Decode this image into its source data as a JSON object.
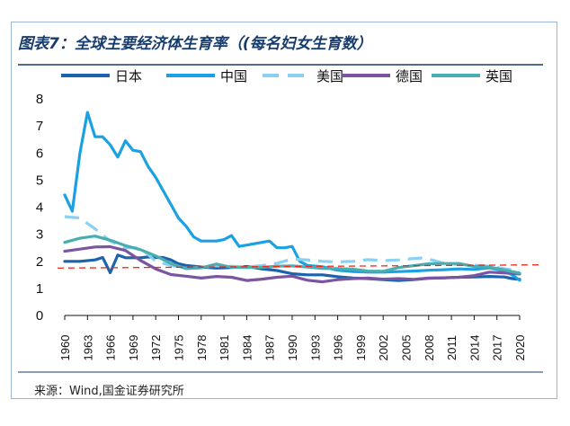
{
  "header": {
    "title": "图表7：全球主要经济体生育率（(每名妇女生育数）"
  },
  "footer": {
    "source": "来源：Wind,国金证券研究所"
  },
  "chart_data": {
    "type": "line",
    "title": "图表7：全球主要经济体生育率（(每名妇女生育数）",
    "xlabel": "",
    "ylabel": "",
    "ylim": [
      0,
      8
    ],
    "xlim": [
      1960,
      2020
    ],
    "yticks": [
      0,
      1,
      2,
      3,
      4,
      5,
      6,
      7,
      8
    ],
    "xticks": [
      1960,
      1963,
      1966,
      1969,
      1972,
      1975,
      1978,
      1981,
      1984,
      1987,
      1990,
      1993,
      1996,
      1999,
      2002,
      2005,
      2008,
      2011,
      2014,
      2017,
      2020
    ],
    "legend_position": "top",
    "reference_line": {
      "value": 1.75,
      "slope_per_year": 0.002,
      "color": "#e8291c",
      "style": "dashed"
    },
    "series": [
      {
        "name": "日本",
        "color": "#1b63ad",
        "dash": false,
        "x": [
          1960,
          1962,
          1964,
          1965,
          1966,
          1967,
          1968,
          1969,
          1970,
          1971,
          1972,
          1973,
          1974,
          1975,
          1976,
          1978,
          1980,
          1982,
          1984,
          1986,
          1988,
          1990,
          1992,
          1994,
          1996,
          1998,
          2000,
          2002,
          2004,
          2006,
          2008,
          2010,
          2012,
          2014,
          2016,
          2018,
          2019,
          2020
        ],
        "y": [
          2.0,
          2.0,
          2.05,
          2.14,
          1.58,
          2.23,
          2.13,
          2.13,
          2.13,
          2.16,
          2.14,
          2.14,
          2.05,
          1.91,
          1.85,
          1.79,
          1.75,
          1.77,
          1.81,
          1.72,
          1.66,
          1.54,
          1.5,
          1.5,
          1.43,
          1.38,
          1.36,
          1.32,
          1.29,
          1.32,
          1.37,
          1.39,
          1.41,
          1.42,
          1.44,
          1.42,
          1.36,
          1.33
        ]
      },
      {
        "name": "中国",
        "color": "#1ba1e2",
        "dash": false,
        "x": [
          1960,
          1961,
          1962,
          1963,
          1964,
          1965,
          1966,
          1967,
          1968,
          1969,
          1970,
          1971,
          1972,
          1973,
          1974,
          1975,
          1976,
          1977,
          1978,
          1979,
          1980,
          1981,
          1982,
          1983,
          1984,
          1985,
          1986,
          1987,
          1988,
          1989,
          1990,
          1991,
          1992,
          1994,
          1996,
          1998,
          2000,
          2002,
          2004,
          2006,
          2008,
          2010,
          2012,
          2014,
          2016,
          2018,
          2019,
          2020
        ],
        "y": [
          4.45,
          3.85,
          6.0,
          7.5,
          6.6,
          6.6,
          6.3,
          5.85,
          6.45,
          6.1,
          6.05,
          5.5,
          5.1,
          4.6,
          4.1,
          3.6,
          3.3,
          2.9,
          2.75,
          2.75,
          2.75,
          2.8,
          2.95,
          2.55,
          2.6,
          2.65,
          2.7,
          2.75,
          2.5,
          2.5,
          2.55,
          2.0,
          1.85,
          1.8,
          1.67,
          1.62,
          1.6,
          1.6,
          1.62,
          1.64,
          1.67,
          1.69,
          1.72,
          1.7,
          1.76,
          1.65,
          1.5,
          1.3
        ]
      },
      {
        "name": "美国",
        "color": "#8ad0f2",
        "dash": true,
        "x": [
          1960,
          1962,
          1964,
          1966,
          1968,
          1970,
          1972,
          1974,
          1976,
          1978,
          1980,
          1982,
          1984,
          1986,
          1988,
          1990,
          1992,
          1994,
          1996,
          1998,
          2000,
          2002,
          2004,
          2006,
          2007,
          2008,
          2010,
          2012,
          2014,
          2016,
          2018,
          2020
        ],
        "y": [
          3.65,
          3.6,
          3.2,
          2.75,
          2.5,
          2.5,
          2.0,
          1.85,
          1.75,
          1.77,
          1.84,
          1.82,
          1.8,
          1.84,
          1.93,
          2.08,
          2.05,
          2.0,
          1.98,
          2.0,
          2.06,
          2.02,
          2.05,
          2.1,
          2.12,
          2.08,
          1.93,
          1.88,
          1.86,
          1.82,
          1.73,
          1.64
        ]
      },
      {
        "name": "德国",
        "color": "#7b559f",
        "dash": false,
        "x": [
          1960,
          1962,
          1964,
          1966,
          1968,
          1970,
          1972,
          1974,
          1976,
          1978,
          1980,
          1982,
          1984,
          1986,
          1988,
          1990,
          1992,
          1994,
          1996,
          1998,
          2000,
          2002,
          2004,
          2006,
          2008,
          2010,
          2012,
          2014,
          2016,
          2018,
          2020
        ],
        "y": [
          2.37,
          2.45,
          2.53,
          2.54,
          2.4,
          2.03,
          1.72,
          1.51,
          1.45,
          1.38,
          1.44,
          1.41,
          1.29,
          1.34,
          1.41,
          1.45,
          1.3,
          1.24,
          1.32,
          1.36,
          1.38,
          1.34,
          1.36,
          1.33,
          1.38,
          1.39,
          1.41,
          1.47,
          1.6,
          1.57,
          1.53
        ]
      },
      {
        "name": "英国",
        "color": "#48aeb2",
        "dash": false,
        "x": [
          1960,
          1962,
          1964,
          1966,
          1968,
          1970,
          1972,
          1974,
          1976,
          1978,
          1980,
          1982,
          1984,
          1986,
          1988,
          1990,
          1992,
          1994,
          1996,
          1998,
          2000,
          2002,
          2004,
          2006,
          2008,
          2010,
          2012,
          2014,
          2016,
          2018,
          2020
        ],
        "y": [
          2.7,
          2.85,
          2.93,
          2.78,
          2.58,
          2.43,
          2.2,
          1.92,
          1.73,
          1.76,
          1.9,
          1.78,
          1.77,
          1.78,
          1.82,
          1.83,
          1.79,
          1.74,
          1.73,
          1.71,
          1.64,
          1.63,
          1.77,
          1.84,
          1.91,
          1.92,
          1.92,
          1.81,
          1.79,
          1.68,
          1.56
        ]
      }
    ]
  }
}
